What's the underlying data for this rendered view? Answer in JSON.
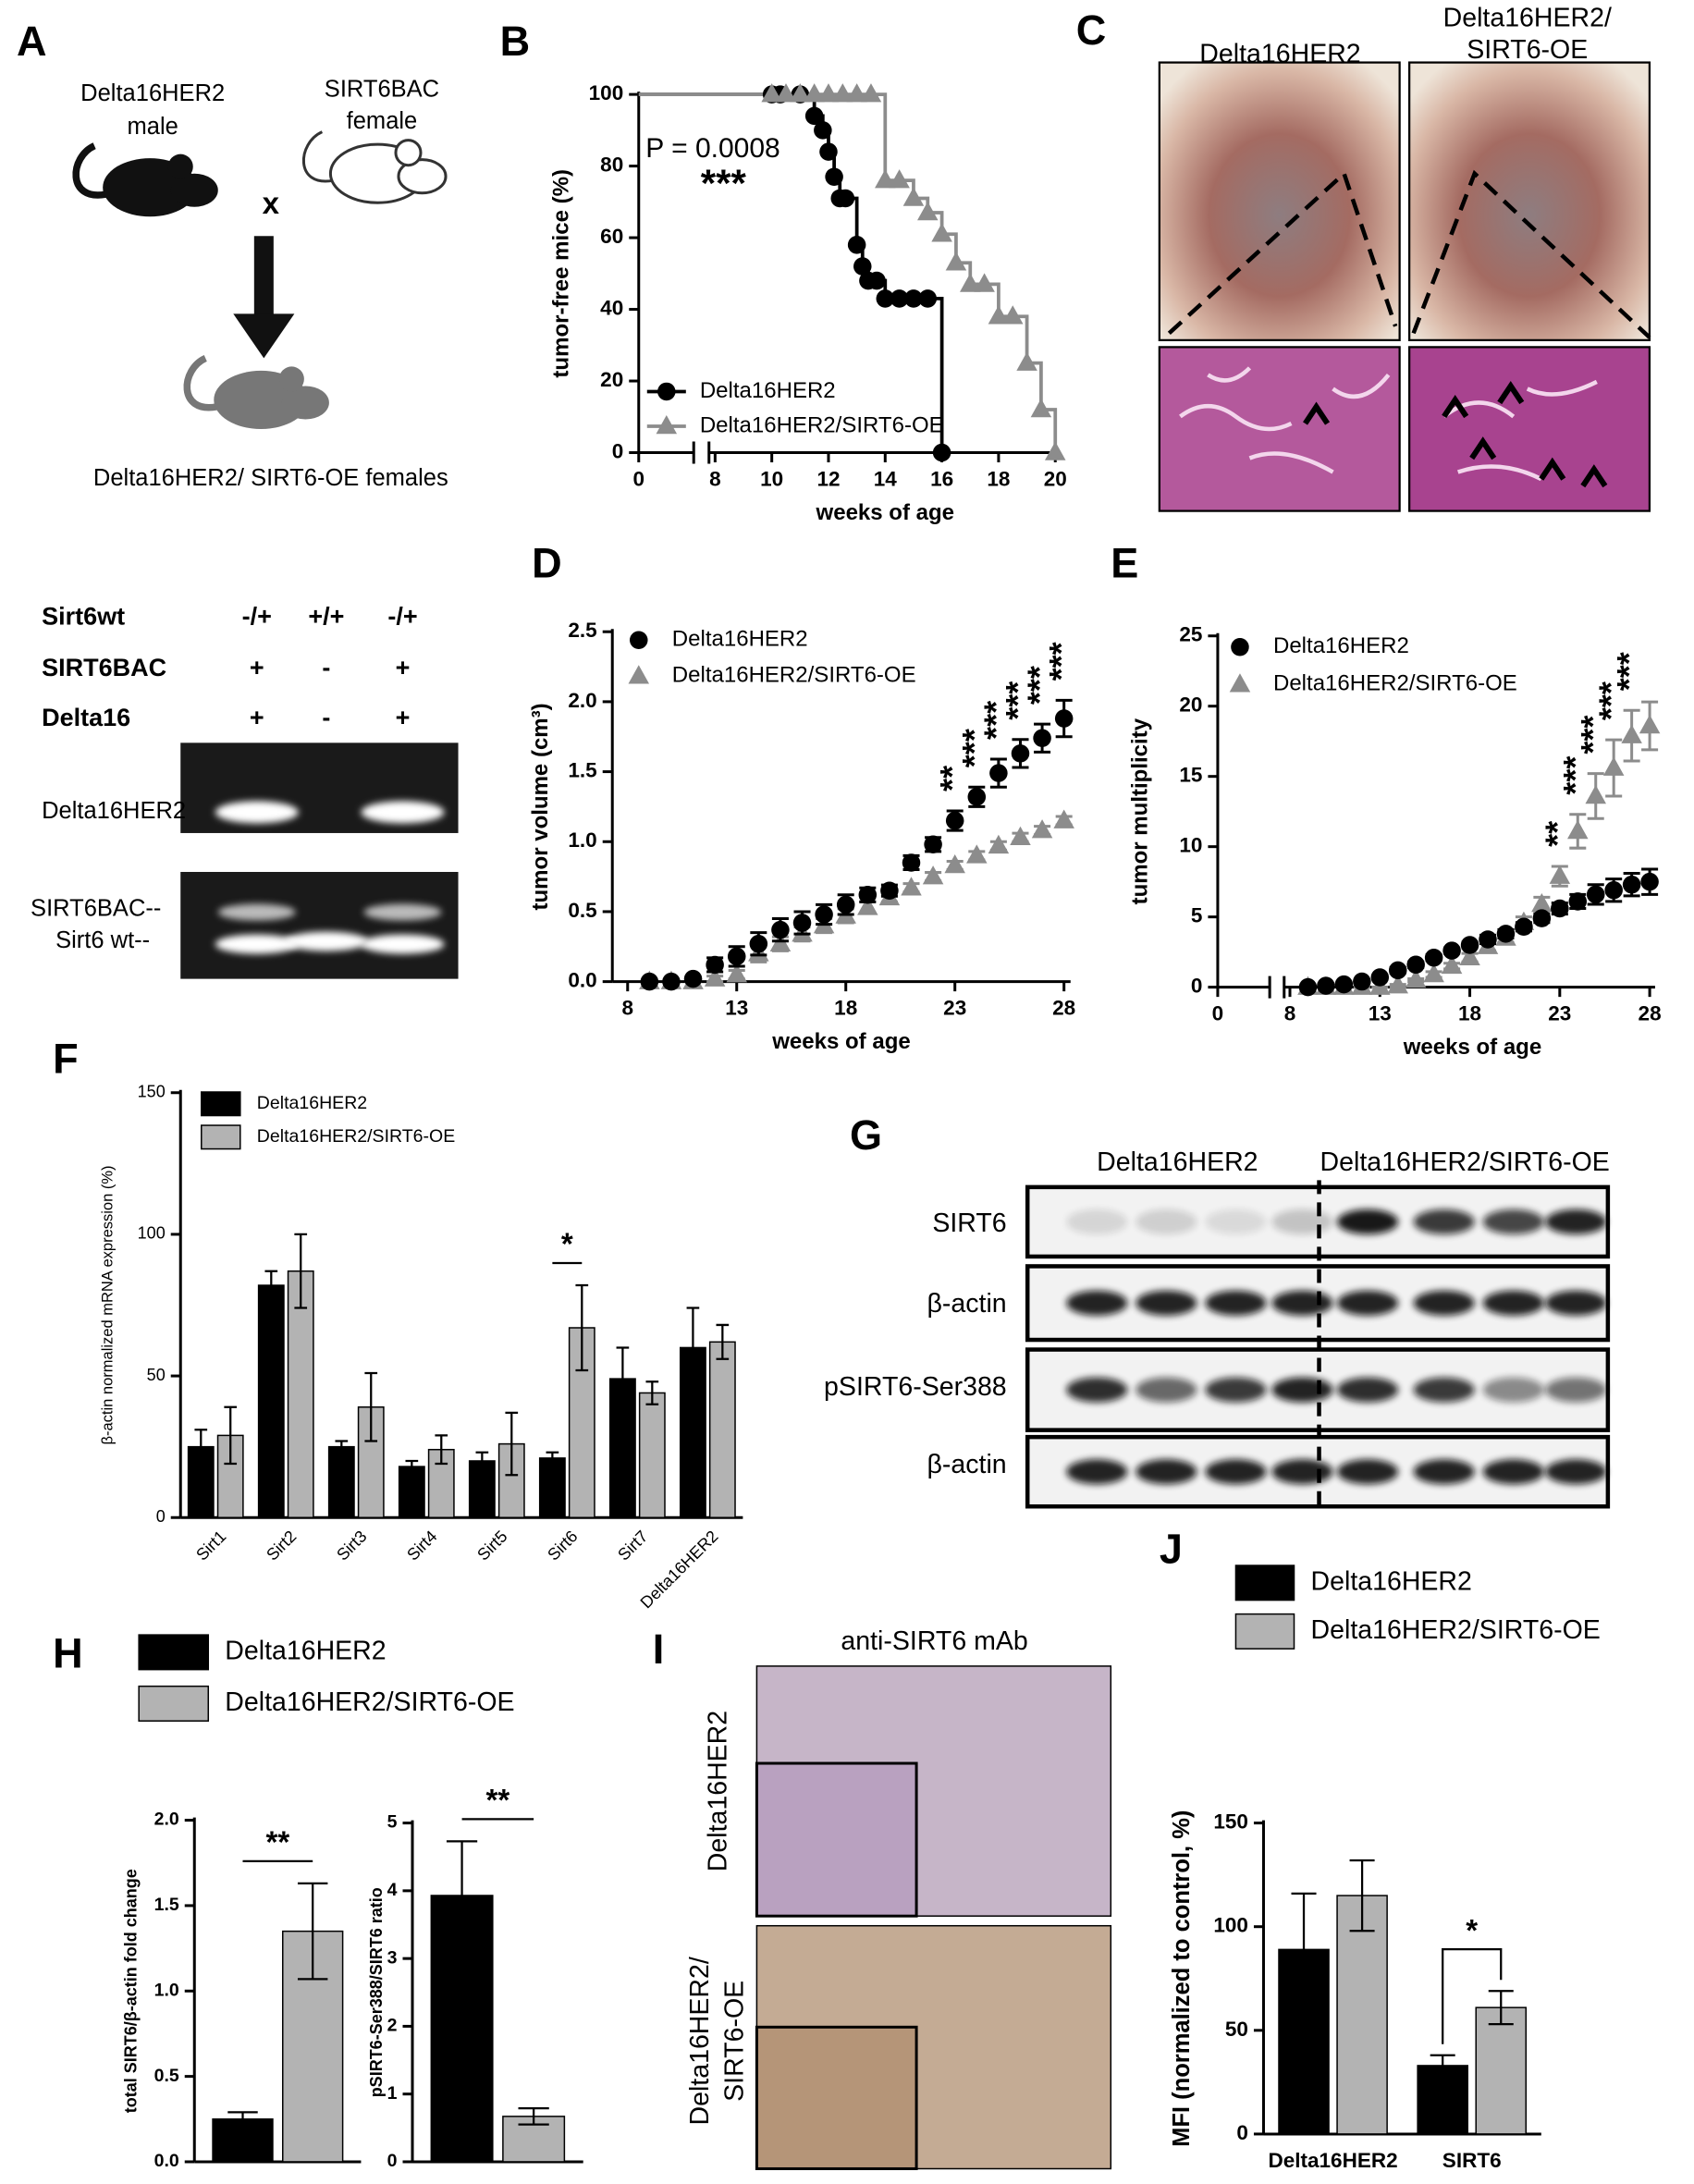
{
  "panel_labels": [
    "A",
    "B",
    "C",
    "D",
    "E",
    "F",
    "G",
    "H",
    "I",
    "J"
  ],
  "diagram": {
    "male_parent": [
      "Delta16HER2",
      "male"
    ],
    "cross": "x",
    "female_parent": [
      "SIRT6BAC",
      "female"
    ],
    "offspring": "Delta16HER2/ SIRT6-OE females"
  },
  "genotyping": {
    "rows": [
      [
        "Sirt6wt",
        "-/+",
        "+/+",
        "-/+"
      ],
      [
        "SIRT6BAC",
        "+",
        "-",
        "+"
      ],
      [
        "Delta16",
        "+",
        "-",
        "+"
      ]
    ],
    "bands": [
      "Delta16HER2",
      "SIRT6BAC--",
      "Sirt6 wt--"
    ]
  },
  "histology": {
    "columns": [
      [
        "Delta16HER2"
      ],
      [
        "Delta16HER2/",
        "SIRT6-OE"
      ]
    ]
  },
  "western_blot": {
    "groups": [
      "Delta16HER2",
      "Delta16HER2/SIRT6-OE"
    ],
    "rows": [
      "SIRT6",
      "β-actin",
      "pSIRT6-Ser388",
      "β-actin"
    ]
  },
  "ihc": {
    "title": "anti-SIRT6 mAb",
    "rows": [
      [
        "Delta16HER2"
      ],
      [
        "Delta16HER2/",
        "SIRT6-OE"
      ]
    ]
  },
  "chart_data": [
    {
      "type": "step",
      "ylabel": "tumor-free mice (%)",
      "xlabel": "weeks of age",
      "xlim": [
        0,
        20
      ],
      "x_break": [
        0,
        8
      ],
      "xticks": [
        0,
        8,
        10,
        12,
        14,
        16,
        18,
        20
      ],
      "ylim": [
        0,
        100
      ],
      "yticks": [
        0,
        20,
        40,
        60,
        80,
        100
      ],
      "legend": "lower left",
      "annotations": [
        "P = 0.0008",
        "***"
      ],
      "series": [
        {
          "name": "Delta16HER2",
          "color": "#000000",
          "marker": "circle",
          "x": [
            0,
            10,
            10.3,
            11,
            11.5,
            11.8,
            12,
            12.2,
            12.4,
            12.6,
            13,
            13.2,
            13.4,
            13.7,
            14,
            14.5,
            15,
            15.5,
            16
          ],
          "values": [
            100,
            100,
            100,
            100,
            94,
            90,
            84,
            77,
            71,
            71,
            58,
            52,
            48,
            48,
            43,
            43,
            43,
            43,
            0
          ]
        },
        {
          "name": "Delta16HER2/SIRT6-OE",
          "color": "#8c8c8c",
          "marker": "triangle",
          "x": [
            0,
            10,
            10.5,
            11,
            11.5,
            12,
            12.5,
            13,
            13.5,
            14,
            14.5,
            15,
            15.5,
            16,
            16.5,
            17,
            17.5,
            18,
            18.5,
            19,
            19.5,
            20
          ],
          "values": [
            100,
            100,
            100,
            100,
            100,
            100,
            100,
            100,
            100,
            76,
            76,
            71,
            67,
            61,
            53,
            47,
            47,
            38,
            38,
            25,
            12,
            0
          ]
        }
      ]
    },
    {
      "type": "scatter",
      "ylabel": "tumor volume (cm³)",
      "xlabel": "weeks of age",
      "xlim": [
        7.3,
        28.3
      ],
      "xticks": [
        8,
        13,
        18,
        23,
        28
      ],
      "ylim": [
        0,
        2.5
      ],
      "yticks": [
        {
          "value": 0,
          "label": "0.0"
        },
        0.5,
        {
          "value": 1,
          "label": "1.0"
        },
        1.5,
        {
          "value": 2,
          "label": "2.0"
        },
        2.5
      ],
      "legend": "upper left",
      "x": [
        9,
        10,
        11,
        12,
        13,
        14,
        15,
        16,
        17,
        18,
        19,
        20,
        21,
        22,
        23,
        24,
        25,
        26,
        27,
        28
      ],
      "series": [
        {
          "name": "Delta16HER2",
          "color": "#000000",
          "marker": "circle",
          "values": [
            0,
            0,
            0.02,
            0.12,
            0.18,
            0.27,
            0.37,
            0.42,
            0.48,
            0.55,
            0.62,
            0.65,
            0.85,
            0.98,
            1.15,
            1.32,
            1.49,
            1.63,
            1.74,
            1.88
          ],
          "errors": [
            0,
            0,
            0.01,
            0.05,
            0.07,
            0.08,
            0.08,
            0.08,
            0.07,
            0.07,
            0.05,
            0.04,
            0.05,
            0.05,
            0.07,
            0.07,
            0.1,
            0.1,
            0.1,
            0.13
          ]
        },
        {
          "name": "Delta16HER2/SIRT6-OE",
          "color": "#8c8c8c",
          "marker": "triangle",
          "values": [
            0,
            0,
            0,
            0.02,
            0.05,
            0.2,
            0.27,
            0.34,
            0.4,
            0.47,
            0.53,
            0.6,
            0.67,
            0.75,
            0.83,
            0.9,
            0.97,
            1.03,
            1.08,
            1.15
          ],
          "errors": [
            0,
            0,
            0,
            0.02,
            0.03,
            0.06,
            0.05,
            0.05,
            0.05,
            0.05,
            0.04,
            0.03,
            0.03,
            0.03,
            0.03,
            0.03,
            0.03,
            0.03,
            0.03,
            0.03
          ]
        }
      ],
      "annotations": [
        {
          "x": 23,
          "label": "**"
        },
        {
          "x": 24,
          "label": "***"
        },
        {
          "x": 25,
          "label": "***"
        },
        {
          "x": 26,
          "label": "***"
        },
        {
          "x": 27,
          "label": "***"
        },
        {
          "x": 28,
          "label": "***"
        }
      ]
    },
    {
      "type": "scatter",
      "ylabel": "tumor multiplicity",
      "xlabel": "weeks of age",
      "xlim": [
        0,
        28.3
      ],
      "x_break": [
        0,
        8
      ],
      "xticks": [
        0,
        8,
        13,
        18,
        23,
        28
      ],
      "ylim": [
        0,
        25
      ],
      "yticks": [
        0,
        5,
        10,
        15,
        20,
        25
      ],
      "legend": "upper left",
      "x": [
        9,
        10,
        11,
        12,
        13,
        14,
        15,
        16,
        17,
        18,
        19,
        20,
        21,
        22,
        23,
        24,
        25,
        26,
        27,
        28
      ],
      "series": [
        {
          "name": "Delta16HER2",
          "color": "#000000",
          "marker": "circle",
          "values": [
            0,
            0.1,
            0.2,
            0.4,
            0.7,
            1.2,
            1.6,
            2.1,
            2.6,
            3.0,
            3.4,
            3.8,
            4.3,
            4.9,
            5.6,
            6.1,
            6.6,
            6.9,
            7.3,
            7.5
          ],
          "errors": [
            0,
            0,
            0,
            0.1,
            0.1,
            0.2,
            0.2,
            0.2,
            0.2,
            0.2,
            0.3,
            0.3,
            0.3,
            0.3,
            0.4,
            0.5,
            0.7,
            0.8,
            0.8,
            0.9
          ]
        },
        {
          "name": "Delta16HER2/SIRT6-OE",
          "color": "#8c8c8c",
          "marker": "triangle",
          "values": [
            0,
            0,
            0,
            0,
            0,
            0.1,
            0.5,
            0.9,
            1.5,
            2.1,
            2.9,
            3.5,
            4.6,
            5.9,
            7.9,
            11.1,
            13.6,
            15.6,
            17.9,
            18.6
          ],
          "errors": [
            0,
            0,
            0,
            0,
            0,
            0.1,
            0.1,
            0.2,
            0.2,
            0.3,
            0.3,
            0.3,
            0.4,
            0.5,
            0.7,
            1.2,
            1.6,
            2.0,
            1.8,
            1.7
          ]
        }
      ],
      "annotations": [
        {
          "x": 23,
          "label": "**"
        },
        {
          "x": 24,
          "label": "***"
        },
        {
          "x": 25,
          "label": "***"
        },
        {
          "x": 26,
          "label": "***"
        },
        {
          "x": 27,
          "label": "***"
        }
      ]
    },
    {
      "type": "bar",
      "ylabel": "β-actin normalized mRNA expression (%)",
      "categories": [
        "Sirt1",
        "Sirt2",
        "Sirt3",
        "Sirt4",
        "Sirt5",
        "Sirt6",
        "Sirt7",
        "Delta16HER2"
      ],
      "ylim": [
        0,
        150
      ],
      "yticks": [
        0,
        50,
        100,
        150
      ],
      "legend": "upper left",
      "series": [
        {
          "name": "Delta16HER2",
          "color": "#000000",
          "values": [
            25,
            82,
            25,
            18,
            20,
            21,
            49,
            60
          ],
          "errors": [
            6,
            5,
            2,
            2,
            3,
            2,
            11,
            14
          ]
        },
        {
          "name": "Delta16HER2/SIRT6-OE",
          "color": "#b3b3b3",
          "values": [
            29,
            87,
            39,
            24,
            26,
            67,
            44,
            62
          ],
          "errors": [
            10,
            13,
            12,
            5,
            11,
            15,
            4,
            6
          ]
        }
      ],
      "significance": [
        {
          "category": 5,
          "label": "*"
        }
      ]
    },
    {
      "type": "bar",
      "ylabel": "total SIRT6/β-actin fold change",
      "categories": [
        null
      ],
      "ylim": [
        0,
        2
      ],
      "yticks": [
        {
          "value": 0,
          "label": "0.0"
        },
        0.5,
        {
          "value": 1,
          "label": "1.0"
        },
        1.5,
        {
          "value": 2,
          "label": "2.0"
        }
      ],
      "legend": "upper left",
      "series": [
        {
          "name": "Delta16HER2",
          "color": "#000000",
          "values": [
            0.25
          ],
          "errors": [
            0.04
          ]
        },
        {
          "name": "Delta16HER2/SIRT6-OE",
          "color": "#b3b3b3",
          "values": [
            1.35
          ],
          "errors": [
            0.28
          ]
        }
      ],
      "significance": [
        {
          "category": 0,
          "label": "**"
        }
      ]
    },
    {
      "type": "bar",
      "ylabel": "pSIRT6-Ser388/SIRT6 ratio",
      "categories": [
        null
      ],
      "ylim": [
        0,
        5
      ],
      "yticks": [
        0,
        1,
        2,
        3,
        4,
        5
      ],
      "series": [
        {
          "color": "#000000",
          "values": [
            3.93
          ],
          "errors": [
            0.8
          ]
        },
        {
          "color": "#b3b3b3",
          "values": [
            0.67
          ],
          "errors": [
            0.12
          ]
        }
      ],
      "significance": [
        {
          "category": 0,
          "label": "**"
        }
      ]
    },
    {
      "type": "bar",
      "ylabel": "MFI  (normalized to control, %)",
      "categories": [
        "Delta16HER2",
        "SIRT6"
      ],
      "ylim": [
        0,
        150
      ],
      "yticks": [
        0,
        50,
        100,
        150
      ],
      "legend": "upper left",
      "series": [
        {
          "name": "Delta16HER2",
          "color": "#000000",
          "values": [
            89,
            33
          ],
          "errors": [
            27,
            5
          ]
        },
        {
          "name": "Delta16HER2/SIRT6-OE",
          "color": "#b3b3b3",
          "values": [
            115,
            61
          ],
          "errors": [
            17,
            8
          ]
        }
      ],
      "significance": [
        {
          "category": 1,
          "label": "*"
        }
      ]
    }
  ]
}
